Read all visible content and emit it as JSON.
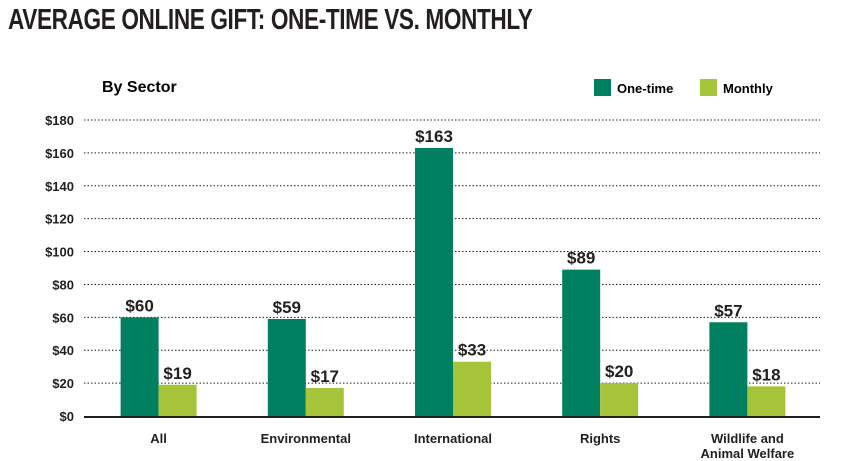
{
  "title": "AVERAGE ONLINE GIFT: ONE-TIME VS. MONTHLY",
  "colors": {
    "one_time": "#008060",
    "monthly": "#a5c43a",
    "text": "#231f20"
  },
  "chart_data": {
    "type": "bar",
    "subtitle": "By Sector",
    "categories": [
      [
        "All"
      ],
      [
        "Environmental"
      ],
      [
        "International"
      ],
      [
        "Rights"
      ],
      [
        "Wildlife and",
        "Animal Welfare"
      ]
    ],
    "series": [
      {
        "name": "One-time",
        "values": [
          60,
          59,
          163,
          89,
          57
        ],
        "labels": [
          "$60",
          "$59",
          "$163",
          "$89",
          "$57"
        ]
      },
      {
        "name": "Monthly",
        "values": [
          19,
          17,
          33,
          20,
          18
        ],
        "labels": [
          "$19",
          "$17",
          "$33",
          "$20",
          "$18"
        ]
      }
    ],
    "ylim": [
      0,
      180
    ],
    "yticks": [
      0,
      20,
      40,
      60,
      80,
      100,
      120,
      140,
      160,
      180
    ],
    "ytick_labels": [
      "$0",
      "$20",
      "$40",
      "$60",
      "$80",
      "$100",
      "$120",
      "$140",
      "$160",
      "$180"
    ],
    "grid": true,
    "legend": "top-right"
  }
}
